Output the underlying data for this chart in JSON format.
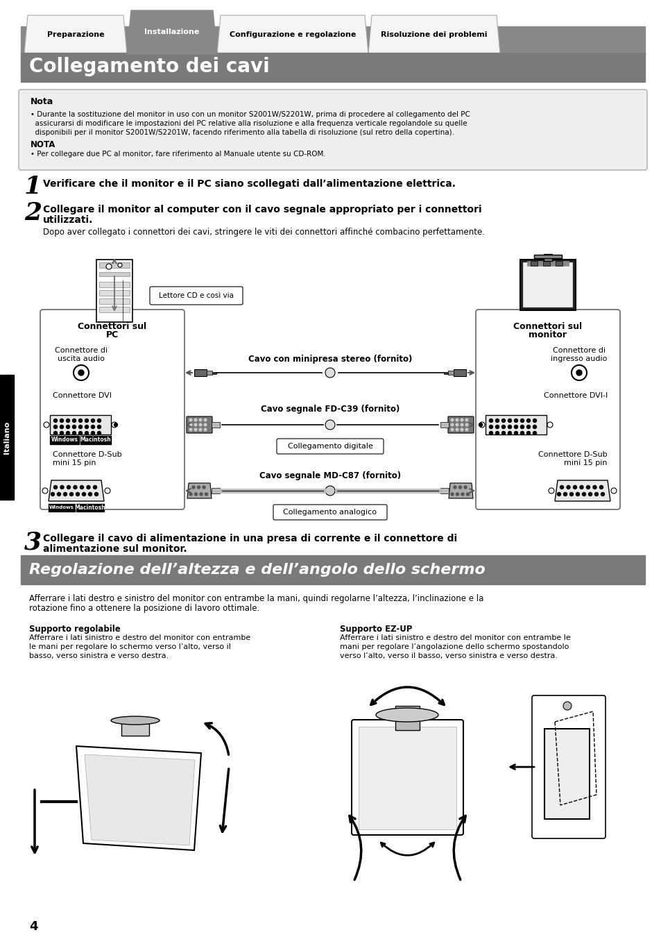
{
  "page_bg": "#ffffff",
  "tab_labels": [
    "Preparazione",
    "Installazione",
    "Configurazione e regolazione",
    "Risoluzione dei problemi"
  ],
  "tab_active": 1,
  "main_title": "Collegamento dei cavi",
  "main_title_bg": "#7a7a7a",
  "nota_title": "Nota",
  "nota_bullet1": "• Durante la sostituzione del monitor in uso con un monitor S2001W/S2201W, prima di procedere al collegamento del PC",
  "nota_bullet1b": "  assicurarsi di modificare le impostazioni del PC relative alla risoluzione e alla frequenza verticale regolandole su quelle",
  "nota_bullet1c": "  disponibili per il monitor S2001W/S2201W, facendo riferimento alla tabella di risoluzione (sul retro della copertina).",
  "nota_nota": "NOTA",
  "nota_bullet2": "• Per collegare due PC al monitor, fare riferimento al Manuale utente su CD-ROM.",
  "step1_num": "1",
  "step1_text": "Verificare che il monitor e il PC siano scollegati dall’alimentazione elettrica.",
  "step2_num": "2",
  "step2_line1": "Collegare il monitor al computer con il cavo segnale appropriato per i connettori",
  "step2_line2": "utilizzati.",
  "step2_sub": "Dopo aver collegato i connettori dei cavi, stringere le viti dei connettori affinché combacino perfettamente.",
  "cd_label": "Lettore CD e così via",
  "left_box_title1": "Connettori sul",
  "left_box_title2": "PC",
  "left_audio_label1": "Connettore di",
  "left_audio_label2": "uscita audio",
  "right_box_title1": "Connettori sul",
  "right_box_title2": "monitor",
  "right_audio_label1": "Connettore di",
  "right_audio_label2": "ingresso audio",
  "cable1_label": "Cavo con minipresa stereo (fornito)",
  "conn_dvi_left": "Connettore DVI",
  "cable2_label": "Cavo segnale FD-C39 (fornito)",
  "conn_dvi_right": "Connettore DVI-I",
  "dig_label": "Collegamento digitale",
  "conn_dsub_left1": "Connettore D-Sub",
  "conn_dsub_left2": "mini 15 pin",
  "cable3_label": "Cavo segnale MD-C87 (fornito)",
  "conn_dsub_right1": "Connettore D-Sub",
  "conn_dsub_right2": "mini 15 pin",
  "ana_label": "Collegamento analogico",
  "step3_num": "3",
  "step3_line1": "Collegare il cavo di alimentazione in una presa di corrente e il connettore di",
  "step3_line2": "alimentazione sul monitor.",
  "section2_title": "Regolazione dell’altezza e dell’angolo dello schermo",
  "section2_bg": "#7a7a7a",
  "section2_intro": "Afferrare i lati destro e sinistro del monitor con entrambe la mani, quindi regolarne l’altezza, l’inclinazione e la",
  "section2_intro2": "rotazione fino a ottenere la posizione di lavoro ottimale.",
  "support_left_title": "Supporto regolabile",
  "support_left_text1": "Afferrare i lati sinistro e destro del monitor con entrambe",
  "support_left_text2": "le mani per regolare lo schermo verso l’alto, verso il",
  "support_left_text3": "basso, verso sinistra e verso destra.",
  "support_right_title": "Supporto EZ-UP",
  "support_right_text1": "Afferrare i lati sinistro e destro del monitor con entrambe le",
  "support_right_text2": "mani per regolare l’angolazione dello schermo spostandolo",
  "support_right_text3": "verso l’alto, verso il basso, verso sinistra e verso destra.",
  "side_label": "Italiano",
  "page_num": "4",
  "gray_tab": "#888888",
  "light_gray": "#dddddd",
  "nota_bg": "#eeeeee",
  "nota_border": "#aaaaaa"
}
